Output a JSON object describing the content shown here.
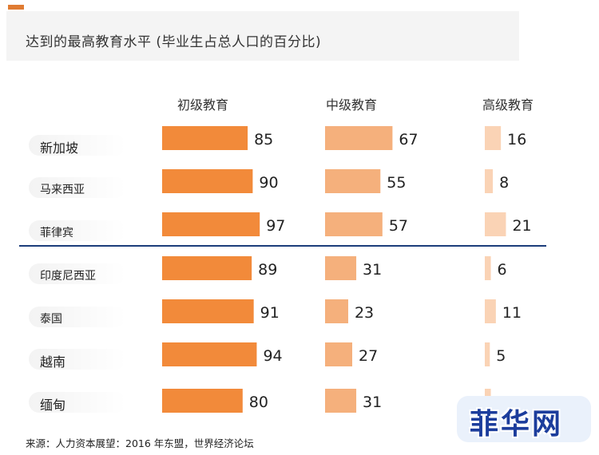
{
  "title": "达到的最高教育水平 (毕业生占总人口的百分比)",
  "source": "来源：人力资本展望：2016 年东盟，世界经济论坛",
  "watermark": "菲华网",
  "colors": {
    "primary": "#f28a3a",
    "secondary": "#f5b07c",
    "tertiary": "#fad3b5",
    "divider": "#1c3d7a",
    "accent": "#e07b32"
  },
  "chart_data": {
    "type": "bar",
    "orientation": "horizontal",
    "categories": [
      "新加坡",
      "马来西亚",
      "菲律宾",
      "印度尼西亚",
      "泰国",
      "越南",
      "缅甸"
    ],
    "series": [
      {
        "name": "初级教育",
        "values": [
          85,
          90,
          97,
          89,
          91,
          94,
          80
        ]
      },
      {
        "name": "中级教育",
        "values": [
          67,
          55,
          57,
          31,
          23,
          27,
          31
        ]
      },
      {
        "name": "高级教育",
        "values": [
          16,
          8,
          21,
          6,
          11,
          5,
          6
        ]
      }
    ],
    "title": "达到的最高教育水平 (毕业生占总人口的百分比)",
    "xlim": [
      0,
      100
    ],
    "grid": false
  }
}
